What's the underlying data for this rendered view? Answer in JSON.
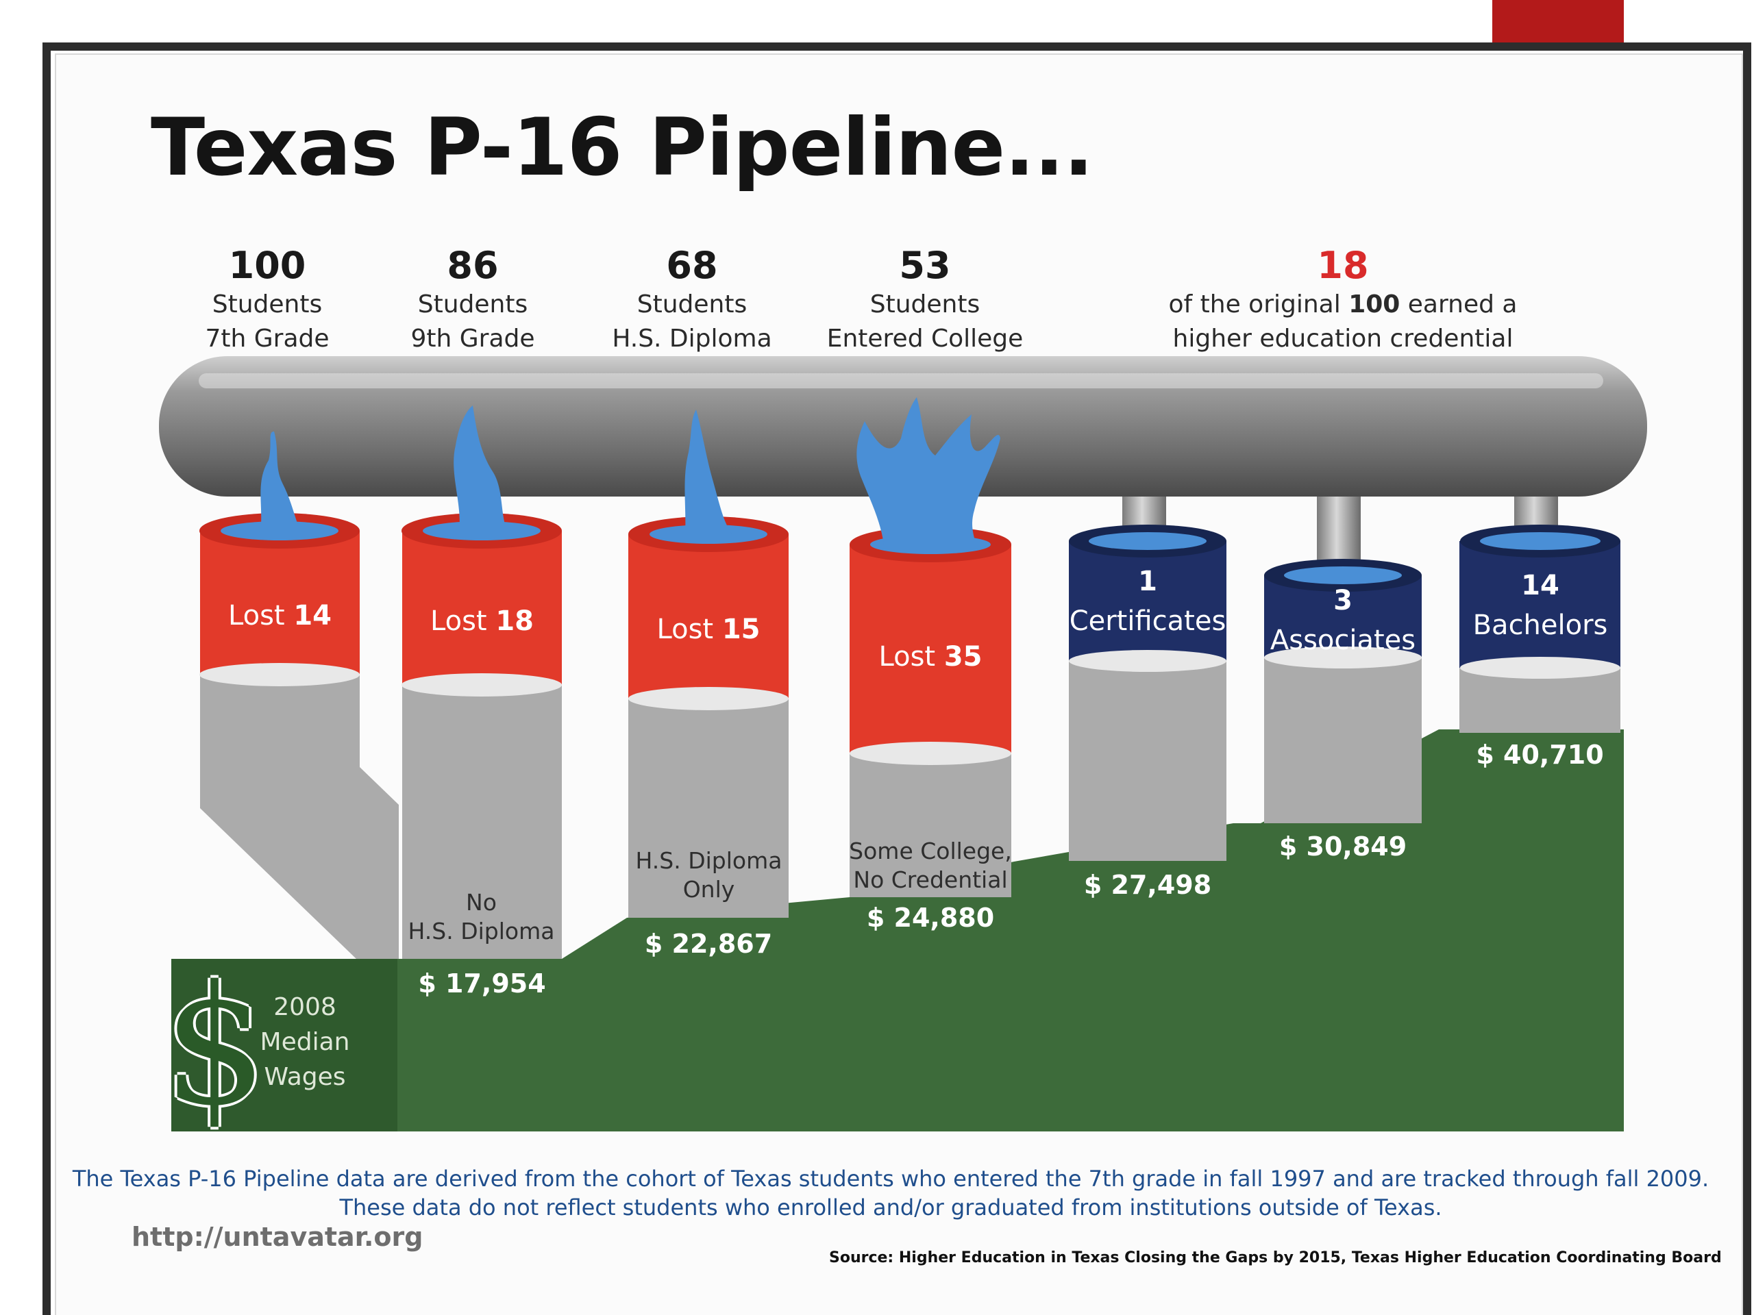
{
  "title": "Texas P-16 Pipeline...",
  "stages": [
    {
      "count": "100",
      "line1": "Students",
      "line2": "7th Grade"
    },
    {
      "count": "86",
      "line1": "Students",
      "line2": "9th Grade"
    },
    {
      "count": "68",
      "line1": "Students",
      "line2": "H.S. Diploma"
    },
    {
      "count": "53",
      "line1": "Students",
      "line2": "Entered College"
    }
  ],
  "credential_summary": {
    "count": "18",
    "line1_pre": "of the original ",
    "line1_bold": "100",
    "line1_post": " earned a",
    "line2": "higher education credential"
  },
  "losses": [
    {
      "prefix": "Lost ",
      "value": "14"
    },
    {
      "prefix": "Lost ",
      "value": "18"
    },
    {
      "prefix": "Lost ",
      "value": "15"
    },
    {
      "prefix": "Lost ",
      "value": "35"
    }
  ],
  "credentials": [
    {
      "count": "1",
      "label": "Certificates"
    },
    {
      "count": "3",
      "label": "Associates"
    },
    {
      "count": "14",
      "label": "Bachelors"
    }
  ],
  "wage_labels": [
    {
      "line1": "No",
      "line2": "H.S. Diploma"
    },
    {
      "line1": "H.S. Diploma",
      "line2": "Only"
    },
    {
      "line1": "Some College,",
      "line2": "No Credential"
    }
  ],
  "wages": [
    "$ 17,954",
    "$ 22,867",
    "$ 24,880",
    "$ 27,498",
    "$ 30,849",
    "$ 40,710"
  ],
  "median_label": [
    "2008",
    "Median",
    "Wages"
  ],
  "dollar_sign": "$",
  "note_line1": "The Texas P-16 Pipeline data are derived from the cohort of Texas students who entered the 7th grade in fall 1997 and are tracked through fall 2009.",
  "note_line2": "These data do not reflect students who enrolled and/or graduated from institutions outside of Texas.",
  "url": "http://untavatar.org",
  "source": "Source: Higher Education in Texas Closing the Gaps by 2015, Texas Higher Education Coordinating Board",
  "colors": {
    "pipe": "#8a8a8a",
    "lost": "#e23a2a",
    "credential": "#1f2f66",
    "water": "#4a8fd6",
    "wage": "#3d6b3a",
    "grey_column": "#aaaaaa",
    "title": "#141414",
    "accent_red": "#d92b2b",
    "note": "#1f4e8c"
  }
}
